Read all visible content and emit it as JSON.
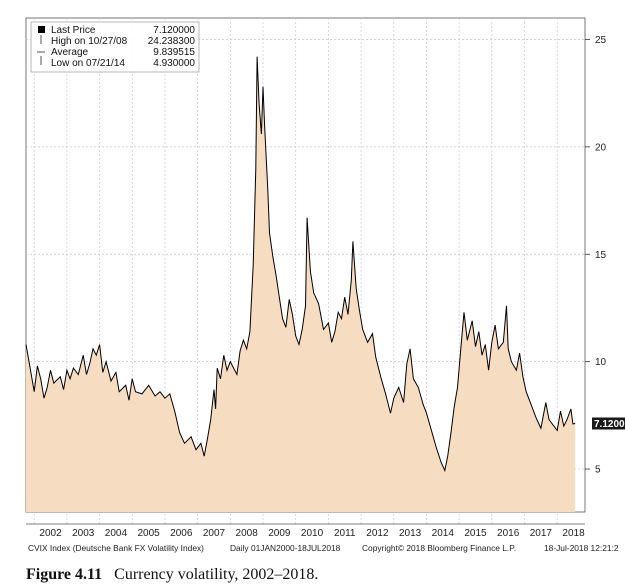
{
  "chart_data": {
    "type": "area",
    "y_axis_position": "right",
    "ylim": [
      3,
      26
    ],
    "y_ticks": [
      5,
      10,
      15,
      20,
      25
    ],
    "x_tick_labels": [
      "2002",
      "2003",
      "2004",
      "2005",
      "2006",
      "2007",
      "2008",
      "2009",
      "2010",
      "2011",
      "2012",
      "2013",
      "2014",
      "2015",
      "2016",
      "2017",
      "2018"
    ],
    "last_value_label": "7.1200",
    "legend": [
      {
        "label": "Last Price",
        "value": "7.120000"
      },
      {
        "label": "High on 10/27/08",
        "value": "24.238300"
      },
      {
        "label": "Average",
        "value": "9.839515"
      },
      {
        "label": "Low on 07/21/14",
        "value": "4.930000"
      }
    ],
    "grid": true,
    "legend_position": "top-left",
    "colors": {
      "fill": "#f6dcc0",
      "line": "#000000",
      "grid": "#c8c8c8"
    },
    "series": [
      {
        "values": [
          [
            2001.75,
            10.8
          ],
          [
            2001.9,
            9.5
          ],
          [
            2002.0,
            8.6
          ],
          [
            2002.1,
            9.8
          ],
          [
            2002.2,
            9.2
          ],
          [
            2002.3,
            8.3
          ],
          [
            2002.4,
            8.8
          ],
          [
            2002.5,
            9.6
          ],
          [
            2002.6,
            9.0
          ],
          [
            2002.8,
            9.3
          ],
          [
            2002.9,
            8.7
          ],
          [
            2003.0,
            9.6
          ],
          [
            2003.1,
            9.2
          ],
          [
            2003.2,
            9.7
          ],
          [
            2003.35,
            9.4
          ],
          [
            2003.5,
            10.3
          ],
          [
            2003.6,
            9.4
          ],
          [
            2003.7,
            9.9
          ],
          [
            2003.8,
            10.6
          ],
          [
            2003.9,
            10.3
          ],
          [
            2004.0,
            10.8
          ],
          [
            2004.1,
            9.5
          ],
          [
            2004.2,
            10.0
          ],
          [
            2004.35,
            9.1
          ],
          [
            2004.5,
            9.5
          ],
          [
            2004.6,
            8.6
          ],
          [
            2004.8,
            8.9
          ],
          [
            2004.9,
            8.2
          ],
          [
            2005.0,
            9.2
          ],
          [
            2005.1,
            8.6
          ],
          [
            2005.3,
            8.5
          ],
          [
            2005.5,
            8.9
          ],
          [
            2005.7,
            8.4
          ],
          [
            2005.85,
            8.6
          ],
          [
            2006.0,
            8.3
          ],
          [
            2006.15,
            8.5
          ],
          [
            2006.3,
            7.7
          ],
          [
            2006.45,
            6.7
          ],
          [
            2006.6,
            6.2
          ],
          [
            2006.8,
            6.5
          ],
          [
            2006.95,
            5.9
          ],
          [
            2007.1,
            6.2
          ],
          [
            2007.2,
            5.6
          ],
          [
            2007.3,
            6.4
          ],
          [
            2007.4,
            7.3
          ],
          [
            2007.5,
            8.7
          ],
          [
            2007.55,
            7.8
          ],
          [
            2007.6,
            9.7
          ],
          [
            2007.7,
            9.2
          ],
          [
            2007.8,
            10.3
          ],
          [
            2007.9,
            9.6
          ],
          [
            2008.0,
            10.0
          ],
          [
            2008.1,
            9.7
          ],
          [
            2008.2,
            9.4
          ],
          [
            2008.3,
            10.5
          ],
          [
            2008.4,
            11.0
          ],
          [
            2008.5,
            10.6
          ],
          [
            2008.6,
            11.4
          ],
          [
            2008.7,
            14.5
          ],
          [
            2008.78,
            19.0
          ],
          [
            2008.82,
            24.2
          ],
          [
            2008.88,
            22.0
          ],
          [
            2008.95,
            20.6
          ],
          [
            2009.0,
            22.8
          ],
          [
            2009.05,
            21.0
          ],
          [
            2009.15,
            17.9
          ],
          [
            2009.2,
            16.0
          ],
          [
            2009.3,
            14.9
          ],
          [
            2009.4,
            14.0
          ],
          [
            2009.5,
            13.0
          ],
          [
            2009.6,
            12.0
          ],
          [
            2009.7,
            11.6
          ],
          [
            2009.8,
            12.9
          ],
          [
            2009.9,
            12.2
          ],
          [
            2010.0,
            11.2
          ],
          [
            2010.1,
            10.8
          ],
          [
            2010.2,
            11.5
          ],
          [
            2010.3,
            12.6
          ],
          [
            2010.35,
            16.7
          ],
          [
            2010.45,
            14.2
          ],
          [
            2010.55,
            13.2
          ],
          [
            2010.7,
            12.7
          ],
          [
            2010.85,
            11.5
          ],
          [
            2011.0,
            11.8
          ],
          [
            2011.1,
            10.9
          ],
          [
            2011.2,
            11.4
          ],
          [
            2011.3,
            12.3
          ],
          [
            2011.4,
            12.0
          ],
          [
            2011.5,
            13.0
          ],
          [
            2011.6,
            12.2
          ],
          [
            2011.7,
            13.8
          ],
          [
            2011.75,
            15.6
          ],
          [
            2011.85,
            13.4
          ],
          [
            2011.95,
            12.4
          ],
          [
            2012.05,
            11.5
          ],
          [
            2012.2,
            10.9
          ],
          [
            2012.35,
            11.3
          ],
          [
            2012.45,
            10.2
          ],
          [
            2012.6,
            9.3
          ],
          [
            2012.75,
            8.5
          ],
          [
            2012.9,
            7.6
          ],
          [
            2013.0,
            8.3
          ],
          [
            2013.15,
            8.8
          ],
          [
            2013.3,
            8.1
          ],
          [
            2013.4,
            9.9
          ],
          [
            2013.5,
            10.6
          ],
          [
            2013.6,
            9.2
          ],
          [
            2013.75,
            8.8
          ],
          [
            2013.9,
            8.0
          ],
          [
            2014.0,
            7.6
          ],
          [
            2014.15,
            6.8
          ],
          [
            2014.3,
            6.0
          ],
          [
            2014.45,
            5.3
          ],
          [
            2014.56,
            4.93
          ],
          [
            2014.65,
            5.6
          ],
          [
            2014.75,
            6.7
          ],
          [
            2014.85,
            7.9
          ],
          [
            2014.95,
            8.8
          ],
          [
            2015.05,
            10.6
          ],
          [
            2015.15,
            12.3
          ],
          [
            2015.25,
            11.0
          ],
          [
            2015.4,
            11.9
          ],
          [
            2015.5,
            10.7
          ],
          [
            2015.6,
            11.4
          ],
          [
            2015.7,
            10.3
          ],
          [
            2015.8,
            10.8
          ],
          [
            2015.9,
            9.6
          ],
          [
            2016.0,
            10.9
          ],
          [
            2016.1,
            11.7
          ],
          [
            2016.2,
            10.6
          ],
          [
            2016.35,
            10.9
          ],
          [
            2016.45,
            12.6
          ],
          [
            2016.5,
            10.6
          ],
          [
            2016.6,
            10.0
          ],
          [
            2016.75,
            9.6
          ],
          [
            2016.85,
            10.4
          ],
          [
            2016.95,
            9.3
          ],
          [
            2017.05,
            8.6
          ],
          [
            2017.2,
            8.0
          ],
          [
            2017.35,
            7.4
          ],
          [
            2017.5,
            6.9
          ],
          [
            2017.65,
            8.1
          ],
          [
            2017.75,
            7.3
          ],
          [
            2017.9,
            7.0
          ],
          [
            2018.0,
            6.8
          ],
          [
            2018.1,
            7.7
          ],
          [
            2018.2,
            7.0
          ],
          [
            2018.3,
            7.3
          ],
          [
            2018.42,
            7.8
          ],
          [
            2018.48,
            7.1
          ],
          [
            2018.55,
            7.12
          ]
        ]
      }
    ]
  },
  "footer": {
    "index_name": "CVIX Index (Deutsche Bank FX Volatility Index)",
    "range": "Daily 01JAN2000-18JUL2018",
    "copyright": "Copyright© 2018 Bloomberg Finance L.P.",
    "timestamp": "18-Jul-2018 12:21:2"
  },
  "caption": {
    "number": "Figure 4.11",
    "text": "Currency volatility, 2002–2018."
  }
}
